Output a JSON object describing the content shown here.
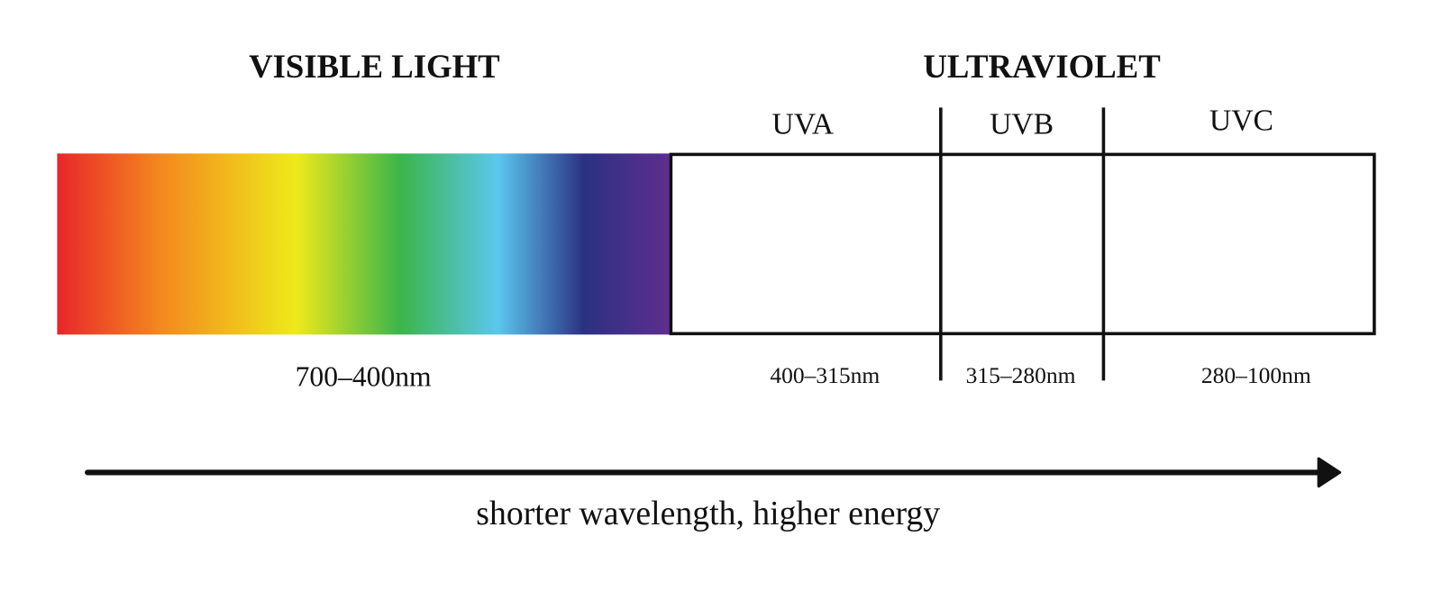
{
  "visible_light": {
    "title": "VISIBLE LIGHT",
    "range": "700–400nm"
  },
  "ultraviolet": {
    "title": "ULTRAVIOLET",
    "bands": [
      {
        "label": "UVA",
        "range": "400–315nm"
      },
      {
        "label": "UVB",
        "range": "315–280nm"
      },
      {
        "label": "UVC",
        "range": "280–100nm"
      }
    ]
  },
  "arrow_label": "shorter wavelength, higher energy"
}
